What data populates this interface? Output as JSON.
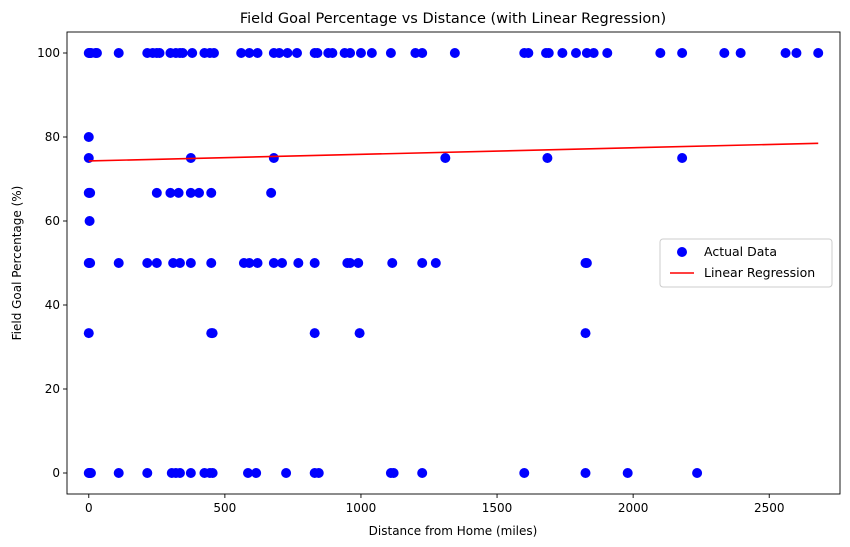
{
  "chart_data": {
    "type": "scatter",
    "title": "Field Goal Percentage vs Distance (with Linear Regression)",
    "xlabel": "Distance from Home (miles)",
    "ylabel": "Field Goal Percentage (%)",
    "xlim": [
      -80,
      2760
    ],
    "ylim": [
      -5,
      105
    ],
    "xticks": [
      0,
      500,
      1000,
      1500,
      2000,
      2500
    ],
    "yticks": [
      0,
      20,
      40,
      60,
      80,
      100
    ],
    "grid": false,
    "legend_position": "center-right",
    "series": [
      {
        "name": "Actual Data",
        "kind": "scatter",
        "color": "#0000ff",
        "points": [
          [
            0,
            100
          ],
          [
            2,
            100
          ],
          [
            5,
            100
          ],
          [
            8,
            100
          ],
          [
            25,
            100
          ],
          [
            30,
            100
          ],
          [
            110,
            100
          ],
          [
            215,
            100
          ],
          [
            235,
            100
          ],
          [
            250,
            100
          ],
          [
            260,
            100
          ],
          [
            300,
            100
          ],
          [
            320,
            100
          ],
          [
            335,
            100
          ],
          [
            345,
            100
          ],
          [
            380,
            100
          ],
          [
            425,
            100
          ],
          [
            445,
            100
          ],
          [
            460,
            100
          ],
          [
            560,
            100
          ],
          [
            590,
            100
          ],
          [
            620,
            100
          ],
          [
            680,
            100
          ],
          [
            700,
            100
          ],
          [
            730,
            100
          ],
          [
            765,
            100
          ],
          [
            830,
            100
          ],
          [
            840,
            100
          ],
          [
            880,
            100
          ],
          [
            895,
            100
          ],
          [
            940,
            100
          ],
          [
            960,
            100
          ],
          [
            1000,
            100
          ],
          [
            1040,
            100
          ],
          [
            1110,
            100
          ],
          [
            1200,
            100
          ],
          [
            1225,
            100
          ],
          [
            1345,
            100
          ],
          [
            1600,
            100
          ],
          [
            1615,
            100
          ],
          [
            1680,
            100
          ],
          [
            1690,
            100
          ],
          [
            1740,
            100
          ],
          [
            1790,
            100
          ],
          [
            1830,
            100
          ],
          [
            1855,
            100
          ],
          [
            1905,
            100
          ],
          [
            2100,
            100
          ],
          [
            2180,
            100
          ],
          [
            2335,
            100
          ],
          [
            2395,
            100
          ],
          [
            2560,
            100
          ],
          [
            2600,
            100
          ],
          [
            2680,
            100
          ],
          [
            0,
            80
          ],
          [
            0,
            75
          ],
          [
            375,
            75
          ],
          [
            680,
            75
          ],
          [
            1310,
            75
          ],
          [
            1685,
            75
          ],
          [
            2180,
            75
          ],
          [
            0,
            66.7
          ],
          [
            2,
            66.7
          ],
          [
            5,
            66.7
          ],
          [
            250,
            66.7
          ],
          [
            300,
            66.7
          ],
          [
            330,
            66.7
          ],
          [
            375,
            66.7
          ],
          [
            405,
            66.7
          ],
          [
            450,
            66.7
          ],
          [
            670,
            66.7
          ],
          [
            3,
            60
          ],
          [
            0,
            50
          ],
          [
            2,
            50
          ],
          [
            5,
            50
          ],
          [
            110,
            50
          ],
          [
            215,
            50
          ],
          [
            250,
            50
          ],
          [
            310,
            50
          ],
          [
            335,
            50
          ],
          [
            375,
            50
          ],
          [
            450,
            50
          ],
          [
            570,
            50
          ],
          [
            590,
            50
          ],
          [
            620,
            50
          ],
          [
            680,
            50
          ],
          [
            710,
            50
          ],
          [
            770,
            50
          ],
          [
            830,
            50
          ],
          [
            950,
            50
          ],
          [
            960,
            50
          ],
          [
            990,
            50
          ],
          [
            1115,
            50
          ],
          [
            1225,
            50
          ],
          [
            1275,
            50
          ],
          [
            1825,
            50
          ],
          [
            1830,
            50
          ],
          [
            0,
            33.3
          ],
          [
            450,
            33.3
          ],
          [
            455,
            33.3
          ],
          [
            830,
            33.3
          ],
          [
            995,
            33.3
          ],
          [
            1825,
            33.3
          ],
          [
            0,
            0
          ],
          [
            2,
            0
          ],
          [
            5,
            0
          ],
          [
            8,
            0
          ],
          [
            110,
            0
          ],
          [
            215,
            0
          ],
          [
            305,
            0
          ],
          [
            320,
            0
          ],
          [
            335,
            0
          ],
          [
            375,
            0
          ],
          [
            425,
            0
          ],
          [
            445,
            0
          ],
          [
            455,
            0
          ],
          [
            585,
            0
          ],
          [
            615,
            0
          ],
          [
            725,
            0
          ],
          [
            830,
            0
          ],
          [
            845,
            0
          ],
          [
            1110,
            0
          ],
          [
            1120,
            0
          ],
          [
            1225,
            0
          ],
          [
            1600,
            0
          ],
          [
            1825,
            0
          ],
          [
            1980,
            0
          ],
          [
            2235,
            0
          ]
        ]
      },
      {
        "name": "Linear Regression",
        "kind": "line",
        "color": "#ff0000",
        "points": [
          [
            0,
            74.3
          ],
          [
            2680,
            78.5
          ]
        ]
      }
    ]
  }
}
